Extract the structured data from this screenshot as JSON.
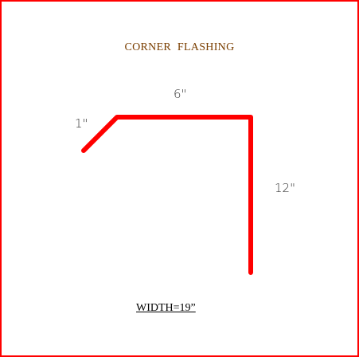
{
  "diagram": {
    "title": "CORNER  FLASHING",
    "dimension_top": "6\"",
    "dimension_lip": "1\"",
    "dimension_side": "12\"",
    "width_label": "WIDTH=19”"
  },
  "colors": {
    "border": "#ff0000",
    "flashing": "#ff0000",
    "title": "#7a3e00",
    "dimension_text": "#333333"
  }
}
